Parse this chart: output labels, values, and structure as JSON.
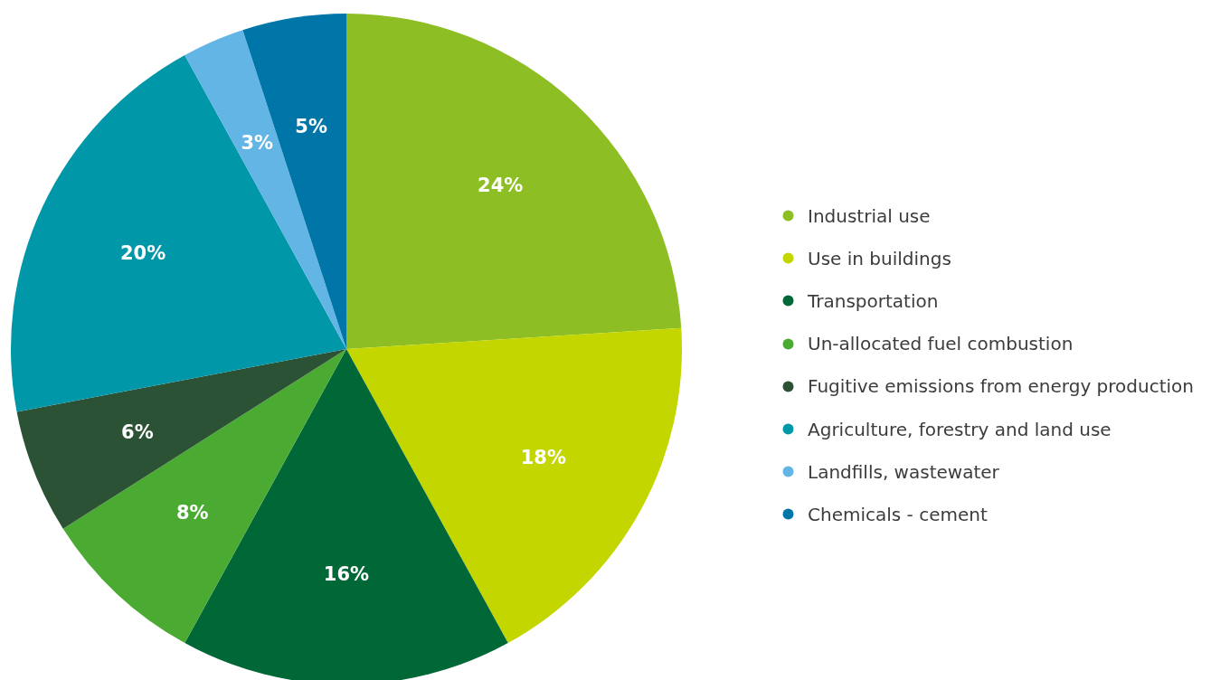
{
  "chart_data": {
    "type": "pie",
    "categories": [
      "Industrial use",
      "Use in buildings",
      "Transportation",
      "Un-allocated fuel combustion",
      "Fugitive emissions from energy production",
      "Agriculture, forestry and land use",
      "Landfills, wastewater",
      "Chemicals - cement"
    ],
    "values": [
      24,
      18,
      16,
      8,
      6,
      20,
      3,
      5
    ],
    "colors": [
      "#8dbe23",
      "#c4d600",
      "#006837",
      "#4aaa32",
      "#2b5234",
      "#0097a9",
      "#62b5e5",
      "#0076a8"
    ],
    "value_labels": [
      "24%",
      "18%",
      "16%",
      "8%",
      "6%",
      "20%",
      "3%",
      "5%"
    ],
    "legend": "right"
  }
}
